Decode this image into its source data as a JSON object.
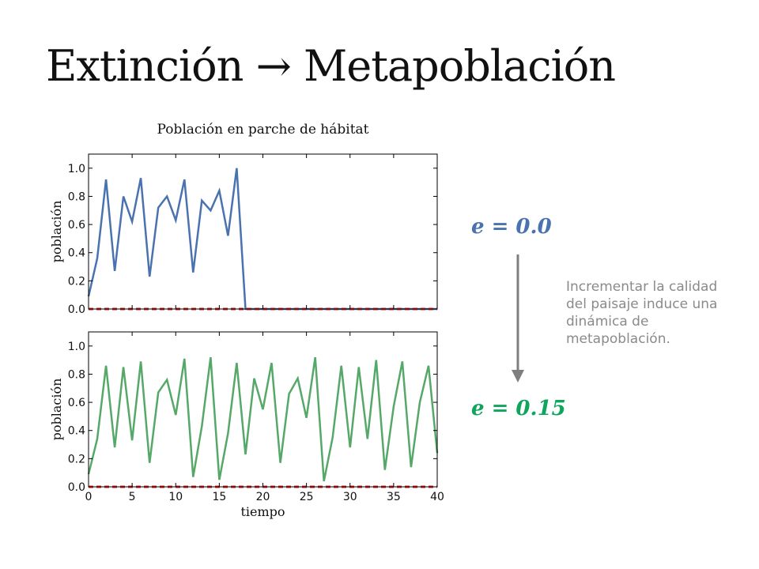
{
  "slide": {
    "title": "Extinción → Metapoblación",
    "eq_top": "e = 0.0",
    "eq_bottom": "e = 0.15",
    "note": "Incrementar la calidad del paisaje induce una dinámica de metapoblación.",
    "colors": {
      "eq_top": "#4a72ae",
      "eq_bottom": "#0fa55c",
      "note": "#8a8a8a",
      "arrow": "#7f7f7f"
    }
  },
  "chart_data": [
    {
      "type": "line",
      "title": "Población en parche de hábitat",
      "xlabel": "",
      "ylabel": "población",
      "xlim": [
        0,
        40
      ],
      "ylim": [
        0,
        1.1
      ],
      "yticks": [
        "0.0",
        "0.2",
        "0.4",
        "0.6",
        "0.8",
        "1.0"
      ],
      "grid": false,
      "series": [
        {
          "color": "#4a72ae",
          "x": [
            0,
            1,
            2,
            3,
            4,
            5,
            6,
            7,
            8,
            9,
            10,
            11,
            12,
            13,
            14,
            15,
            16,
            17,
            18,
            19,
            20,
            21,
            22,
            23,
            24,
            25,
            26,
            27,
            28,
            29,
            30,
            31,
            32,
            33,
            34,
            35,
            36,
            37,
            38,
            39,
            40
          ],
          "values": [
            0.09,
            0.36,
            0.92,
            0.27,
            0.8,
            0.62,
            0.93,
            0.23,
            0.72,
            0.8,
            0.63,
            0.92,
            0.26,
            0.77,
            0.7,
            0.84,
            0.52,
            1.0,
            0.0,
            0.0,
            0.0,
            0.0,
            0.0,
            0.0,
            0.0,
            0.0,
            0.0,
            0.0,
            0.0,
            0.0,
            0.0,
            0.0,
            0.0,
            0.0,
            0.0,
            0.0,
            0.0,
            0.0,
            0.0,
            0.0,
            0.0
          ]
        },
        {
          "color": "#d62728",
          "style": "dashed",
          "x": [
            0,
            40
          ],
          "values": [
            0.0,
            0.0
          ]
        }
      ]
    },
    {
      "type": "line",
      "title": "",
      "xlabel": "tiempo",
      "ylabel": "población",
      "xlim": [
        0,
        40
      ],
      "ylim": [
        0,
        1.1
      ],
      "yticks": [
        "0.0",
        "0.2",
        "0.4",
        "0.6",
        "0.8",
        "1.0"
      ],
      "xticks": [
        "0",
        "5",
        "10",
        "15",
        "20",
        "25",
        "30",
        "35",
        "40"
      ],
      "grid": false,
      "series": [
        {
          "color": "#55a868",
          "x": [
            0,
            1,
            2,
            3,
            4,
            5,
            6,
            7,
            8,
            9,
            10,
            11,
            12,
            13,
            14,
            15,
            16,
            17,
            18,
            19,
            20,
            21,
            22,
            23,
            24,
            25,
            26,
            27,
            28,
            29,
            30,
            31,
            32,
            33,
            34,
            35,
            36,
            37,
            38,
            39,
            40
          ],
          "values": [
            0.09,
            0.34,
            0.86,
            0.28,
            0.85,
            0.33,
            0.89,
            0.17,
            0.67,
            0.76,
            0.51,
            0.91,
            0.07,
            0.43,
            0.92,
            0.05,
            0.38,
            0.88,
            0.23,
            0.77,
            0.55,
            0.88,
            0.17,
            0.66,
            0.77,
            0.49,
            0.92,
            0.04,
            0.35,
            0.86,
            0.28,
            0.85,
            0.34,
            0.9,
            0.12,
            0.57,
            0.89,
            0.14,
            0.6,
            0.86,
            0.24
          ]
        },
        {
          "color": "#d62728",
          "style": "dashed",
          "x": [
            0,
            40
          ],
          "values": [
            0.0,
            0.0
          ]
        }
      ]
    }
  ]
}
